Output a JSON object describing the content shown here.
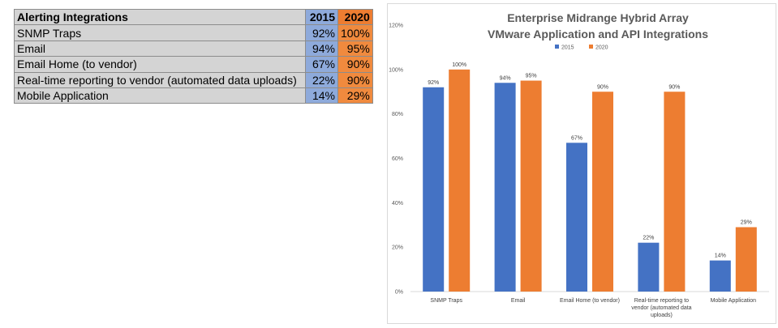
{
  "table": {
    "header": {
      "label": "Alerting Integrations",
      "col1": "2015",
      "col2": "2020"
    },
    "rows": [
      {
        "label": "SNMP Traps",
        "v2015": "92%",
        "v2020": "100%"
      },
      {
        "label": "Email",
        "v2015": "94%",
        "v2020": "95%"
      },
      {
        "label": "Email Home (to vendor)",
        "v2015": "67%",
        "v2020": "90%"
      },
      {
        "label": "Real-time reporting to vendor (automated data uploads)",
        "v2015": "22%",
        "v2020": "90%"
      },
      {
        "label": "Mobile Application",
        "v2015": "14%",
        "v2020": "29%"
      }
    ]
  },
  "chart_data": {
    "type": "bar",
    "title": [
      "Enterprise Midrange Hybrid Array",
      "VMware Application and API Integrations"
    ],
    "categories": [
      [
        "SNMP Traps"
      ],
      [
        "Email"
      ],
      [
        "Email Home (to vendor)"
      ],
      [
        "Real-time reporting to",
        "vendor (automated data",
        "uploads)"
      ],
      [
        "Mobile Application"
      ]
    ],
    "series": [
      {
        "name": "2015",
        "color": "#4472c4",
        "values": [
          92,
          94,
          67,
          22,
          14
        ]
      },
      {
        "name": "2020",
        "color": "#ed7d31",
        "values": [
          100,
          95,
          90,
          90,
          29
        ]
      }
    ],
    "ylim": [
      0,
      120
    ],
    "yticks": [
      0,
      20,
      40,
      60,
      80,
      100,
      120
    ],
    "tick_suffix": "%",
    "legend_position": "top-center",
    "grid": false
  }
}
